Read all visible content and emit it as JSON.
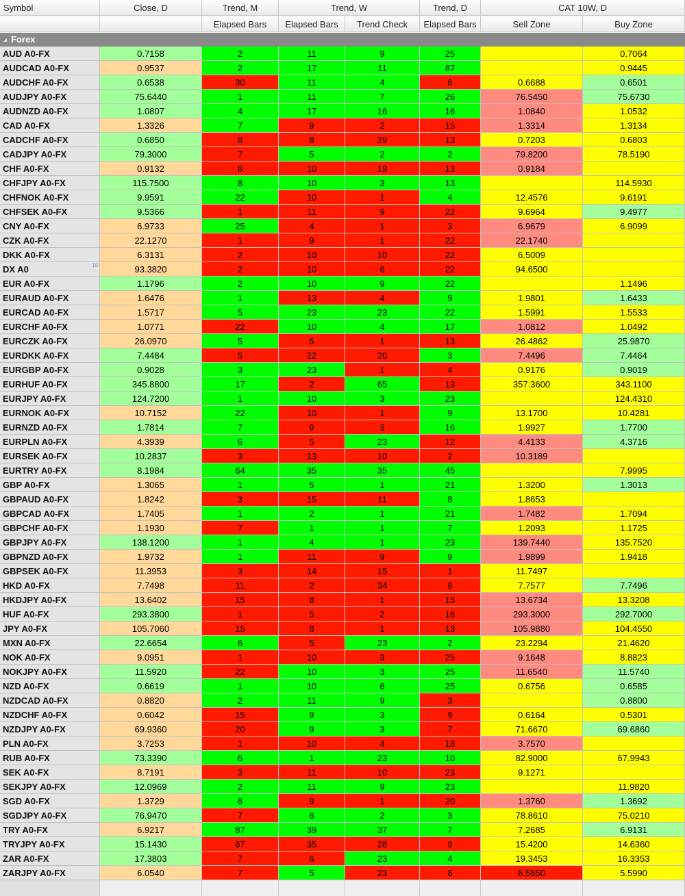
{
  "colors": {
    "orange": "#ffd89a",
    "lightgreen": "#a3ff9a",
    "green": "#00ff00",
    "red": "#ff1a00",
    "yellow": "#ffff00",
    "pink": "#ff8a80"
  },
  "columns": {
    "header_top": [
      "Symbol",
      "Close, D",
      "Trend, M",
      "Trend, W",
      "Trend, D",
      "CAT 10W, D"
    ],
    "header_sub": [
      "",
      "",
      "Elapsed Bars",
      "Elapsed Bars",
      "Trend Check",
      "Elapsed Bars",
      "Sell Zone",
      "Buy Zone"
    ]
  },
  "group": {
    "label": "Forex"
  },
  "rows": [
    {
      "sym": "AUD A0-FX",
      "close": "0.7158",
      "cc": "lightgreen",
      "m": "2",
      "mc": "green",
      "w": "11",
      "wc": "green",
      "t": "9",
      "tc": "green",
      "d": "25",
      "dc": "green",
      "sell": "",
      "sc": "yellow",
      "buy": "0.7064",
      "bc": "yellow"
    },
    {
      "sym": "AUDCAD A0-FX",
      "close": "0.9537",
      "cc": "orange",
      "m": "2",
      "mc": "green",
      "w": "17",
      "wc": "green",
      "t": "11",
      "tc": "green",
      "d": "87",
      "dc": "green",
      "sell": "",
      "sc": "yellow",
      "buy": "0.9445",
      "bc": "yellow"
    },
    {
      "sym": "AUDCHF A0-FX",
      "close": "0.6538",
      "cc": "lightgreen",
      "m": "30",
      "mc": "red",
      "w": "11",
      "wc": "green",
      "t": "4",
      "tc": "green",
      "d": "6",
      "dc": "red",
      "sell": "0.6688",
      "sc": "yellow",
      "buy": "0.6501",
      "bc": "lightgreen"
    },
    {
      "sym": "AUDJPY A0-FX",
      "close": "75.6440",
      "cc": "lightgreen",
      "m": "1",
      "mc": "green",
      "w": "11",
      "wc": "green",
      "t": "7",
      "tc": "green",
      "d": "26",
      "dc": "green",
      "sell": "76.5450",
      "sc": "pink",
      "buy": "75.6730",
      "bc": "lightgreen"
    },
    {
      "sym": "AUDNZD A0-FX",
      "close": "1.0807",
      "cc": "lightgreen",
      "m": "4",
      "mc": "green",
      "w": "17",
      "wc": "green",
      "t": "16",
      "tc": "green",
      "d": "16",
      "dc": "green",
      "sell": "1.0840",
      "sc": "pink",
      "buy": "1.0532",
      "bc": "yellow"
    },
    {
      "sym": "CAD A0-FX",
      "close": "1.3326",
      "cc": "orange",
      "m": "7",
      "mc": "green",
      "w": "9",
      "wc": "red",
      "t": "2",
      "tc": "red",
      "d": "15",
      "dc": "red",
      "sell": "1.3314",
      "sc": "pink",
      "buy": "1.3134",
      "bc": "yellow"
    },
    {
      "sym": "CADCHF A0-FX",
      "close": "0.6850",
      "cc": "lightgreen",
      "m": "8",
      "mc": "red",
      "w": "8",
      "wc": "red",
      "t": "29",
      "tc": "red",
      "d": "13",
      "dc": "red",
      "sell": "0.7203",
      "sc": "yellow",
      "buy": "0.6803",
      "bc": "yellow"
    },
    {
      "sym": "CADJPY A0-FX",
      "close": "79.3000",
      "cc": "lightgreen",
      "m": "7",
      "mc": "red",
      "w": "5",
      "wc": "green",
      "t": "2",
      "tc": "green",
      "d": "2",
      "dc": "green",
      "sell": "79.8200",
      "sc": "pink",
      "buy": "78.5190",
      "bc": "yellow"
    },
    {
      "sym": "CHF A0-FX",
      "close": "0.9132",
      "cc": "orange",
      "m": "8",
      "mc": "red",
      "w": "10",
      "wc": "red",
      "t": "19",
      "tc": "red",
      "d": "13",
      "dc": "red",
      "sell": "0.9184",
      "sc": "pink",
      "buy": "",
      "bc": "yellow"
    },
    {
      "sym": "CHFJPY A0-FX",
      "close": "115.7500",
      "cc": "lightgreen",
      "m": "8",
      "mc": "green",
      "w": "10",
      "wc": "green",
      "t": "3",
      "tc": "green",
      "d": "13",
      "dc": "green",
      "sell": "",
      "sc": "yellow",
      "buy": "114.5930",
      "bc": "yellow"
    },
    {
      "sym": "CHFNOK A0-FX",
      "close": "9.9591",
      "cc": "lightgreen",
      "m": "22",
      "mc": "green",
      "w": "10",
      "wc": "red",
      "t": "1",
      "tc": "red",
      "d": "4",
      "dc": "green",
      "sell": "12.4576",
      "sc": "yellow",
      "buy": "9.6191",
      "bc": "yellow"
    },
    {
      "sym": "CHFSEK A0-FX",
      "close": "9.5366",
      "cc": "lightgreen",
      "m": "1",
      "mc": "red",
      "w": "11",
      "wc": "red",
      "t": "9",
      "tc": "red",
      "d": "22",
      "dc": "red",
      "sell": "9.6964",
      "sc": "yellow",
      "buy": "9.4977",
      "bc": "lightgreen"
    },
    {
      "sym": "CNY A0-FX",
      "close": "6.9733",
      "cc": "orange",
      "m": "25",
      "mc": "green",
      "w": "4",
      "wc": "red",
      "t": "1",
      "tc": "red",
      "d": "3",
      "dc": "red",
      "sell": "6.9679",
      "sc": "pink",
      "buy": "6.9099",
      "bc": "yellow"
    },
    {
      "sym": "CZK A0-FX",
      "close": "22.1270",
      "cc": "orange",
      "m": "1",
      "mc": "red",
      "w": "9",
      "wc": "red",
      "t": "1",
      "tc": "red",
      "d": "22",
      "dc": "red",
      "sell": "22.1740",
      "sc": "pink",
      "buy": "",
      "bc": "yellow"
    },
    {
      "sym": "DKK A0-FX",
      "close": "6.3131",
      "cc": "orange",
      "m": "2",
      "mc": "red",
      "w": "10",
      "wc": "red",
      "t": "10",
      "tc": "red",
      "d": "22",
      "dc": "red",
      "sell": "6.5009",
      "sc": "yellow",
      "buy": "",
      "bc": "yellow"
    },
    {
      "sym": "DX A0",
      "close": "93.3820",
      "cc": "orange",
      "m": "2",
      "mc": "red",
      "w": "10",
      "wc": "red",
      "t": "6",
      "tc": "red",
      "d": "22",
      "dc": "red",
      "sell": "94.6500",
      "sc": "yellow",
      "buy": "",
      "bc": "yellow",
      "mark": "10"
    },
    {
      "sym": "EUR A0-FX",
      "close": "1.1796",
      "cc": "lightgreen",
      "m": "2",
      "mc": "green",
      "w": "10",
      "wc": "green",
      "t": "9",
      "tc": "green",
      "d": "22",
      "dc": "green",
      "sell": "",
      "sc": "yellow",
      "buy": "1.1496",
      "bc": "yellow"
    },
    {
      "sym": "EURAUD A0-FX",
      "close": "1.6476",
      "cc": "orange",
      "m": "1",
      "mc": "green",
      "w": "13",
      "wc": "red",
      "t": "4",
      "tc": "red",
      "d": "9",
      "dc": "green",
      "sell": "1.9801",
      "sc": "yellow",
      "buy": "1.6433",
      "bc": "lightgreen"
    },
    {
      "sym": "EURCAD A0-FX",
      "close": "1.5717",
      "cc": "orange",
      "m": "5",
      "mc": "green",
      "w": "23",
      "wc": "green",
      "t": "23",
      "tc": "green",
      "d": "22",
      "dc": "green",
      "sell": "1.5991",
      "sc": "yellow",
      "buy": "1.5533",
      "bc": "yellow"
    },
    {
      "sym": "EURCHF A0-FX",
      "close": "1.0771",
      "cc": "orange",
      "m": "22",
      "mc": "red",
      "w": "10",
      "wc": "green",
      "t": "4",
      "tc": "green",
      "d": "17",
      "dc": "green",
      "sell": "1.0812",
      "sc": "pink",
      "buy": "1.0492",
      "bc": "yellow"
    },
    {
      "sym": "EURCZK A0-FX",
      "close": "26.0970",
      "cc": "orange",
      "m": "5",
      "mc": "green",
      "w": "5",
      "wc": "red",
      "t": "1",
      "tc": "red",
      "d": "13",
      "dc": "red",
      "sell": "26.4862",
      "sc": "yellow",
      "buy": "25.9870",
      "bc": "lightgreen"
    },
    {
      "sym": "EURDKK A0-FX",
      "close": "7.4484",
      "cc": "lightgreen",
      "m": "5",
      "mc": "red",
      "w": "22",
      "wc": "red",
      "t": "20",
      "tc": "red",
      "d": "3",
      "dc": "green",
      "sell": "7.4496",
      "sc": "pink",
      "buy": "7.4464",
      "bc": "lightgreen"
    },
    {
      "sym": "EURGBP A0-FX",
      "close": "0.9028",
      "cc": "lightgreen",
      "m": "3",
      "mc": "green",
      "w": "23",
      "wc": "green",
      "t": "1",
      "tc": "red",
      "d": "4",
      "dc": "red",
      "sell": "0.9176",
      "sc": "yellow",
      "buy": "0.9019",
      "bc": "lightgreen"
    },
    {
      "sym": "EURHUF A0-FX",
      "close": "345.8800",
      "cc": "lightgreen",
      "m": "17",
      "mc": "green",
      "w": "2",
      "wc": "red",
      "t": "65",
      "tc": "green",
      "d": "13",
      "dc": "red",
      "sell": "357.3600",
      "sc": "yellow",
      "buy": "343.1100",
      "bc": "yellow"
    },
    {
      "sym": "EURJPY A0-FX",
      "close": "124.7200",
      "cc": "lightgreen",
      "m": "1",
      "mc": "green",
      "w": "10",
      "wc": "green",
      "t": "3",
      "tc": "green",
      "d": "23",
      "dc": "green",
      "sell": "",
      "sc": "yellow",
      "buy": "124.4310",
      "bc": "yellow"
    },
    {
      "sym": "EURNOK A0-FX",
      "close": "10.7152",
      "cc": "orange",
      "m": "22",
      "mc": "green",
      "w": "10",
      "wc": "red",
      "t": "1",
      "tc": "red",
      "d": "9",
      "dc": "green",
      "sell": "13.1700",
      "sc": "yellow",
      "buy": "10.4281",
      "bc": "yellow"
    },
    {
      "sym": "EURNZD A0-FX",
      "close": "1.7814",
      "cc": "lightgreen",
      "m": "7",
      "mc": "green",
      "w": "9",
      "wc": "red",
      "t": "3",
      "tc": "red",
      "d": "16",
      "dc": "green",
      "sell": "1.9927",
      "sc": "yellow",
      "buy": "1.7700",
      "bc": "lightgreen"
    },
    {
      "sym": "EURPLN A0-FX",
      "close": "4.3939",
      "cc": "orange",
      "m": "6",
      "mc": "green",
      "w": "5",
      "wc": "red",
      "t": "23",
      "tc": "green",
      "d": "12",
      "dc": "red",
      "sell": "4.4133",
      "sc": "pink",
      "buy": "4.3716",
      "bc": "lightgreen"
    },
    {
      "sym": "EURSEK A0-FX",
      "close": "10.2837",
      "cc": "lightgreen",
      "m": "3",
      "mc": "red",
      "w": "13",
      "wc": "red",
      "t": "10",
      "tc": "red",
      "d": "2",
      "dc": "red",
      "sell": "10.3189",
      "sc": "pink",
      "buy": "",
      "bc": "yellow"
    },
    {
      "sym": "EURTRY A0-FX",
      "close": "8.1984",
      "cc": "lightgreen",
      "m": "64",
      "mc": "green",
      "w": "35",
      "wc": "green",
      "t": "35",
      "tc": "green",
      "d": "45",
      "dc": "green",
      "sell": "",
      "sc": "yellow",
      "buy": "7.9995",
      "bc": "yellow"
    },
    {
      "sym": "GBP A0-FX",
      "close": "1.3065",
      "cc": "orange",
      "m": "1",
      "mc": "green",
      "w": "5",
      "wc": "green",
      "t": "1",
      "tc": "green",
      "d": "21",
      "dc": "green",
      "sell": "1.3200",
      "sc": "yellow",
      "buy": "1.3013",
      "bc": "lightgreen"
    },
    {
      "sym": "GBPAUD A0-FX",
      "close": "1.8242",
      "cc": "orange",
      "m": "3",
      "mc": "red",
      "w": "15",
      "wc": "red",
      "t": "11",
      "tc": "red",
      "d": "8",
      "dc": "green",
      "sell": "1.8653",
      "sc": "yellow",
      "buy": "",
      "bc": "yellow"
    },
    {
      "sym": "GBPCAD A0-FX",
      "close": "1.7405",
      "cc": "orange",
      "m": "1",
      "mc": "green",
      "w": "2",
      "wc": "green",
      "t": "1",
      "tc": "green",
      "d": "21",
      "dc": "green",
      "sell": "1.7482",
      "sc": "pink",
      "buy": "1.7094",
      "bc": "yellow"
    },
    {
      "sym": "GBPCHF A0-FX",
      "close": "1.1930",
      "cc": "orange",
      "m": "7",
      "mc": "red",
      "w": "1",
      "wc": "green",
      "t": "1",
      "tc": "green",
      "d": "7",
      "dc": "green",
      "sell": "1.2093",
      "sc": "yellow",
      "buy": "1.1725",
      "bc": "yellow"
    },
    {
      "sym": "GBPJPY A0-FX",
      "close": "138.1200",
      "cc": "lightgreen",
      "m": "1",
      "mc": "green",
      "w": "4",
      "wc": "green",
      "t": "1",
      "tc": "green",
      "d": "23",
      "dc": "green",
      "sell": "139.7440",
      "sc": "pink",
      "buy": "135.7520",
      "bc": "yellow"
    },
    {
      "sym": "GBPNZD A0-FX",
      "close": "1.9732",
      "cc": "orange",
      "m": "1",
      "mc": "green",
      "w": "11",
      "wc": "red",
      "t": "9",
      "tc": "red",
      "d": "9",
      "dc": "green",
      "sell": "1.9899",
      "sc": "pink",
      "buy": "1.9418",
      "bc": "yellow"
    },
    {
      "sym": "GBPSEK A0-FX",
      "close": "11.3953",
      "cc": "orange",
      "m": "3",
      "mc": "red",
      "w": "14",
      "wc": "red",
      "t": "15",
      "tc": "red",
      "d": "1",
      "dc": "red",
      "sell": "11.7497",
      "sc": "yellow",
      "buy": "",
      "bc": "yellow"
    },
    {
      "sym": "HKD A0-FX",
      "close": "7.7498",
      "cc": "orange",
      "m": "11",
      "mc": "red",
      "w": "2",
      "wc": "red",
      "t": "34",
      "tc": "red",
      "d": "9",
      "dc": "red",
      "sell": "7.7577",
      "sc": "yellow",
      "buy": "7.7496",
      "bc": "lightgreen"
    },
    {
      "sym": "HKDJPY A0-FX",
      "close": "13.6402",
      "cc": "orange",
      "m": "15",
      "mc": "red",
      "w": "8",
      "wc": "red",
      "t": "1",
      "tc": "red",
      "d": "15",
      "dc": "red",
      "sell": "13.6734",
      "sc": "pink",
      "buy": "13.3208",
      "bc": "yellow"
    },
    {
      "sym": "HUF A0-FX",
      "close": "293.3800",
      "cc": "lightgreen",
      "m": "1",
      "mc": "red",
      "w": "5",
      "wc": "red",
      "t": "2",
      "tc": "red",
      "d": "16",
      "dc": "red",
      "sell": "293.3000",
      "sc": "pink",
      "buy": "292.7000",
      "bc": "lightgreen"
    },
    {
      "sym": "JPY A0-FX",
      "close": "105.7060",
      "cc": "orange",
      "m": "15",
      "mc": "red",
      "w": "8",
      "wc": "red",
      "t": "1",
      "tc": "red",
      "d": "13",
      "dc": "red",
      "sell": "105.9880",
      "sc": "pink",
      "buy": "104.4550",
      "bc": "yellow"
    },
    {
      "sym": "MXN A0-FX",
      "close": "22.6654",
      "cc": "lightgreen",
      "m": "6",
      "mc": "green",
      "w": "5",
      "wc": "red",
      "t": "23",
      "tc": "green",
      "d": "2",
      "dc": "green",
      "sell": "23.2294",
      "sc": "yellow",
      "buy": "21.4620",
      "bc": "yellow"
    },
    {
      "sym": "NOK A0-FX",
      "close": "9.0951",
      "cc": "orange",
      "m": "1",
      "mc": "red",
      "w": "10",
      "wc": "red",
      "t": "3",
      "tc": "red",
      "d": "25",
      "dc": "red",
      "sell": "9.1648",
      "sc": "pink",
      "buy": "8.8823",
      "bc": "yellow"
    },
    {
      "sym": "NOKJPY A0-FX",
      "close": "11.5920",
      "cc": "lightgreen",
      "m": "22",
      "mc": "red",
      "w": "10",
      "wc": "green",
      "t": "3",
      "tc": "green",
      "d": "25",
      "dc": "green",
      "sell": "11.6540",
      "sc": "pink",
      "buy": "11.5740",
      "bc": "lightgreen"
    },
    {
      "sym": "NZD A0-FX",
      "close": "0.6619",
      "cc": "lightgreen",
      "m": "1",
      "mc": "green",
      "w": "10",
      "wc": "green",
      "t": "6",
      "tc": "green",
      "d": "25",
      "dc": "green",
      "sell": "0.6756",
      "sc": "yellow",
      "buy": "0.6585",
      "bc": "lightgreen"
    },
    {
      "sym": "NZDCAD A0-FX",
      "close": "0.8820",
      "cc": "orange",
      "m": "2",
      "mc": "green",
      "w": "11",
      "wc": "green",
      "t": "9",
      "tc": "green",
      "d": "3",
      "dc": "red",
      "sell": "",
      "sc": "yellow",
      "buy": "0.8800",
      "bc": "lightgreen"
    },
    {
      "sym": "NZDCHF A0-FX",
      "close": "0.6042",
      "cc": "orange",
      "m": "15",
      "mc": "red",
      "w": "9",
      "wc": "green",
      "t": "3",
      "tc": "green",
      "d": "9",
      "dc": "red",
      "sell": "0.6164",
      "sc": "yellow",
      "buy": "0.5301",
      "bc": "yellow"
    },
    {
      "sym": "NZDJPY A0-FX",
      "close": "69.9360",
      "cc": "orange",
      "m": "20",
      "mc": "red",
      "w": "9",
      "wc": "green",
      "t": "3",
      "tc": "green",
      "d": "7",
      "dc": "red",
      "sell": "71.6670",
      "sc": "yellow",
      "buy": "69.6860",
      "bc": "lightgreen"
    },
    {
      "sym": "PLN A0-FX",
      "close": "3.7253",
      "cc": "orange",
      "m": "1",
      "mc": "red",
      "w": "10",
      "wc": "red",
      "t": "4",
      "tc": "red",
      "d": "18",
      "dc": "red",
      "sell": "3.7570",
      "sc": "pink",
      "buy": "",
      "bc": "yellow"
    },
    {
      "sym": "RUB A0-FX",
      "close": "73.3390",
      "cc": "lightgreen",
      "m": "6",
      "mc": "green",
      "w": "1",
      "wc": "green",
      "t": "23",
      "tc": "green",
      "d": "10",
      "dc": "green",
      "sell": "82.9000",
      "sc": "yellow",
      "buy": "67.9943",
      "bc": "yellow"
    },
    {
      "sym": "SEK A0-FX",
      "close": "8.7191",
      "cc": "orange",
      "m": "3",
      "mc": "red",
      "w": "11",
      "wc": "red",
      "t": "10",
      "tc": "red",
      "d": "23",
      "dc": "red",
      "sell": "9.1271",
      "sc": "yellow",
      "buy": "",
      "bc": "yellow"
    },
    {
      "sym": "SEKJPY A0-FX",
      "close": "12.0969",
      "cc": "lightgreen",
      "m": "2",
      "mc": "green",
      "w": "11",
      "wc": "green",
      "t": "9",
      "tc": "green",
      "d": "23",
      "dc": "green",
      "sell": "",
      "sc": "yellow",
      "buy": "11.9820",
      "bc": "yellow"
    },
    {
      "sym": "SGD A0-FX",
      "close": "1.3729",
      "cc": "orange",
      "m": "6",
      "mc": "green",
      "w": "9",
      "wc": "red",
      "t": "1",
      "tc": "red",
      "d": "20",
      "dc": "red",
      "sell": "1.3760",
      "sc": "pink",
      "buy": "1.3692",
      "bc": "lightgreen"
    },
    {
      "sym": "SGDJPY A0-FX",
      "close": "76.9470",
      "cc": "lightgreen",
      "m": "7",
      "mc": "red",
      "w": "6",
      "wc": "green",
      "t": "2",
      "tc": "green",
      "d": "3",
      "dc": "green",
      "sell": "78.8610",
      "sc": "yellow",
      "buy": "75.0210",
      "bc": "yellow"
    },
    {
      "sym": "TRY A0-FX",
      "close": "6.9217",
      "cc": "orange",
      "m": "87",
      "mc": "green",
      "w": "39",
      "wc": "green",
      "t": "37",
      "tc": "green",
      "d": "7",
      "dc": "green",
      "sell": "7.2685",
      "sc": "yellow",
      "buy": "6.9131",
      "bc": "lightgreen"
    },
    {
      "sym": "TRYJPY A0-FX",
      "close": "15.1430",
      "cc": "lightgreen",
      "m": "67",
      "mc": "red",
      "w": "35",
      "wc": "red",
      "t": "28",
      "tc": "red",
      "d": "9",
      "dc": "red",
      "sell": "15.4200",
      "sc": "yellow",
      "buy": "14.6360",
      "bc": "yellow"
    },
    {
      "sym": "ZAR A0-FX",
      "close": "17.3803",
      "cc": "lightgreen",
      "m": "7",
      "mc": "red",
      "w": "6",
      "wc": "red",
      "t": "23",
      "tc": "green",
      "d": "4",
      "dc": "green",
      "sell": "19.3453",
      "sc": "yellow",
      "buy": "16.3353",
      "bc": "yellow"
    },
    {
      "sym": "ZARJPY A0-FX",
      "close": "6.0540",
      "cc": "orange",
      "m": "7",
      "mc": "red",
      "w": "5",
      "wc": "green",
      "t": "23",
      "tc": "red",
      "d": "6",
      "dc": "red",
      "sell": "6.5650",
      "sc": "red",
      "buy": "5.5990",
      "bc": "yellow"
    }
  ]
}
